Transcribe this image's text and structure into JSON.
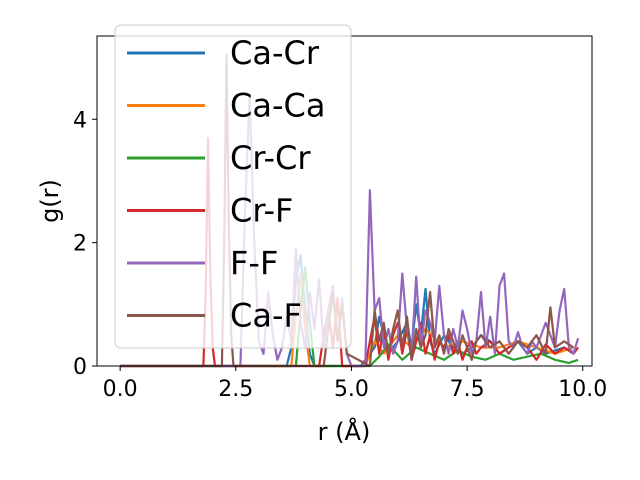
{
  "chart_data": {
    "type": "line",
    "xlabel": "r (Å)",
    "ylabel": "g(r)",
    "xlim": [
      -0.5,
      10.2
    ],
    "ylim": [
      0,
      5.35
    ],
    "xticks": [
      0.0,
      2.5,
      5.0,
      7.5,
      10.0
    ],
    "xtick_labels": [
      "0.0",
      "2.5",
      "5.0",
      "7.5",
      "10.0"
    ],
    "yticks": [
      0,
      2,
      4
    ],
    "ytick_labels": [
      "0",
      "2",
      "4"
    ],
    "grid": false,
    "legend_position": "top-left",
    "series": [
      {
        "name": "Ca-Cr",
        "color": "#1f77b4",
        "x": [
          0,
          3.6,
          3.7,
          3.8,
          3.9,
          4.0,
          4.1,
          4.2,
          5.2,
          5.5,
          5.6,
          5.7,
          5.8,
          6.0,
          6.2,
          6.3,
          6.4,
          6.5,
          6.6,
          6.7,
          6.8,
          7.0,
          7.2,
          7.4,
          7.6,
          7.8,
          8.0,
          8.2,
          8.4,
          8.6,
          8.8,
          9.0,
          9.2,
          9.4,
          9.6,
          9.8
        ],
        "y": [
          0,
          0,
          0.3,
          1.4,
          1.8,
          0.9,
          0.2,
          0,
          0,
          0.3,
          0.8,
          0.5,
          0.2,
          0.4,
          0.7,
          0.3,
          1.0,
          0.5,
          1.25,
          0.4,
          0.2,
          0.5,
          0.3,
          0.2,
          0.3,
          0.5,
          0.4,
          0.2,
          0.3,
          0.4,
          0.2,
          0.3,
          0.2,
          0.25,
          0.3,
          0.2
        ]
      },
      {
        "name": "Ca-Ca",
        "color": "#ff7f0e",
        "x": [
          0,
          3.7,
          3.8,
          3.9,
          4.0,
          4.1,
          5.3,
          5.5,
          5.7,
          6.0,
          6.3,
          6.6,
          7.0,
          7.4,
          7.8,
          8.2,
          8.6,
          9.0,
          9.4,
          9.8
        ],
        "y": [
          0,
          0,
          0.8,
          1.5,
          0.6,
          0,
          0,
          0.4,
          0.2,
          0.5,
          0.3,
          0.6,
          0.3,
          0.4,
          0.3,
          0.3,
          0.4,
          0.3,
          0.2,
          0.3
        ]
      },
      {
        "name": "Cr-Cr",
        "color": "#2ca02c",
        "x": [
          0,
          3.8,
          3.9,
          4.0,
          4.1,
          4.2,
          5.4,
          5.6,
          5.8,
          6.1,
          6.4,
          6.7,
          7.0,
          7.3,
          7.6,
          7.9,
          8.2,
          8.5,
          8.8,
          9.1,
          9.4,
          9.7,
          9.9
        ],
        "y": [
          0,
          0,
          0.9,
          1.6,
          0.7,
          0,
          0,
          0.15,
          0.35,
          0.1,
          0.3,
          0.2,
          0.1,
          0.25,
          0.15,
          0.1,
          0.2,
          0.1,
          0.15,
          0.2,
          0.1,
          0.05,
          0.1
        ]
      },
      {
        "name": "Cr-F",
        "color": "#d62728",
        "x": [
          0,
          1.8,
          1.85,
          1.9,
          1.95,
          2.0,
          2.05,
          4.3,
          4.4,
          4.5,
          4.6,
          4.7,
          4.8,
          5.3,
          5.4,
          5.5,
          5.6,
          5.7,
          5.8,
          5.9,
          6.0,
          6.1,
          6.2,
          6.3,
          6.4,
          6.5,
          6.6,
          6.7,
          6.8,
          6.9,
          7.0,
          7.1,
          7.2,
          7.3,
          7.4,
          7.5,
          7.6,
          7.7,
          7.8,
          8.0,
          8.2,
          8.4,
          8.6,
          8.8,
          9.0,
          9.2,
          9.4,
          9.6,
          9.8,
          9.9
        ],
        "y": [
          0,
          0,
          1.2,
          3.7,
          1.5,
          0.3,
          0,
          0,
          0.5,
          0.9,
          0.3,
          1.1,
          0,
          0,
          0.4,
          0.8,
          0.2,
          0.6,
          0.1,
          0.5,
          0.7,
          0.2,
          0.6,
          0.1,
          0.4,
          0.7,
          0.2,
          0.5,
          0.1,
          0.4,
          0.3,
          0.5,
          0.2,
          0.4,
          0.1,
          0.3,
          0.4,
          0.2,
          0.3,
          0.4,
          0.2,
          0.3,
          0.4,
          0.3,
          0.1,
          0.35,
          0.2,
          0.3,
          0.2,
          0.3
        ]
      },
      {
        "name": "F-F",
        "color": "#9467bd",
        "x": [
          0,
          2.6,
          2.7,
          2.8,
          2.9,
          3.0,
          3.1,
          3.2,
          3.3,
          3.4,
          3.5,
          3.6,
          3.7,
          3.8,
          3.9,
          4.0,
          4.1,
          4.2,
          4.3,
          4.4,
          4.5,
          4.6,
          4.7,
          4.8,
          4.9,
          5.0,
          5.1,
          5.2,
          5.3,
          5.4,
          5.5,
          5.6,
          5.7,
          5.8,
          5.9,
          6.0,
          6.1,
          6.2,
          6.3,
          6.4,
          6.5,
          6.6,
          6.7,
          6.8,
          6.9,
          7.0,
          7.1,
          7.2,
          7.3,
          7.4,
          7.5,
          7.6,
          7.7,
          7.8,
          7.9,
          8.0,
          8.1,
          8.2,
          8.3,
          8.4,
          8.5,
          8.6,
          8.7,
          8.8,
          8.9,
          9.0,
          9.1,
          9.2,
          9.3,
          9.4,
          9.5,
          9.6,
          9.7,
          9.8,
          9.9
        ],
        "y": [
          0,
          0,
          2.5,
          4.4,
          2.0,
          0.4,
          0.2,
          1.2,
          0.5,
          0.1,
          0.3,
          0.8,
          0.4,
          1.9,
          0.7,
          0.3,
          1.2,
          0.6,
          1.4,
          0.3,
          0.9,
          1.3,
          0.4,
          1.1,
          0.2,
          0,
          0,
          0,
          0,
          2.85,
          0.9,
          1.1,
          0.3,
          0.6,
          0.2,
          0.4,
          1.5,
          0.6,
          0.2,
          1.45,
          0.3,
          0.9,
          0.7,
          0.4,
          1.3,
          0.5,
          0.2,
          0.6,
          0.3,
          0.9,
          0.6,
          0.2,
          0.4,
          1.2,
          0.3,
          0.8,
          0.2,
          1.3,
          1.5,
          0.4,
          0.3,
          0.55,
          0.3,
          0.2,
          0.4,
          0.3,
          0.5,
          0.7,
          0.5,
          0.3,
          0.9,
          1.25,
          0.3,
          0.2,
          0.45
        ]
      },
      {
        "name": "Ca-F",
        "color": "#8c564b",
        "x": [
          0,
          2.2,
          2.25,
          2.3,
          2.35,
          2.4,
          2.45,
          4.4,
          4.5,
          4.6,
          4.7,
          4.8,
          4.9,
          5.4,
          5.5,
          5.6,
          5.7,
          5.8,
          5.9,
          6.0,
          6.1,
          6.2,
          6.3,
          6.4,
          6.5,
          6.6,
          6.7,
          6.8,
          6.9,
          7.0,
          7.1,
          7.2,
          7.3,
          7.4,
          7.5,
          7.6,
          7.7,
          7.8,
          8.0,
          8.2,
          8.4,
          8.6,
          8.8,
          9.0,
          9.2,
          9.3,
          9.4,
          9.6,
          9.8
        ],
        "y": [
          0,
          0,
          2.0,
          5.05,
          2.3,
          0.5,
          0,
          0,
          0.6,
          1.2,
          0.4,
          1.0,
          0.2,
          0,
          0.9,
          0.4,
          0.7,
          0.2,
          0.6,
          0.9,
          0.3,
          0.8,
          0.1,
          0.6,
          0.3,
          0.5,
          1.2,
          0.3,
          0.5,
          0.2,
          0.6,
          0.4,
          0.2,
          0.5,
          0.3,
          0.1,
          0.4,
          0.5,
          0.3,
          0.4,
          0.2,
          0.4,
          0.3,
          0.5,
          0.2,
          0.95,
          0.3,
          0.4,
          0.3
        ]
      }
    ]
  }
}
